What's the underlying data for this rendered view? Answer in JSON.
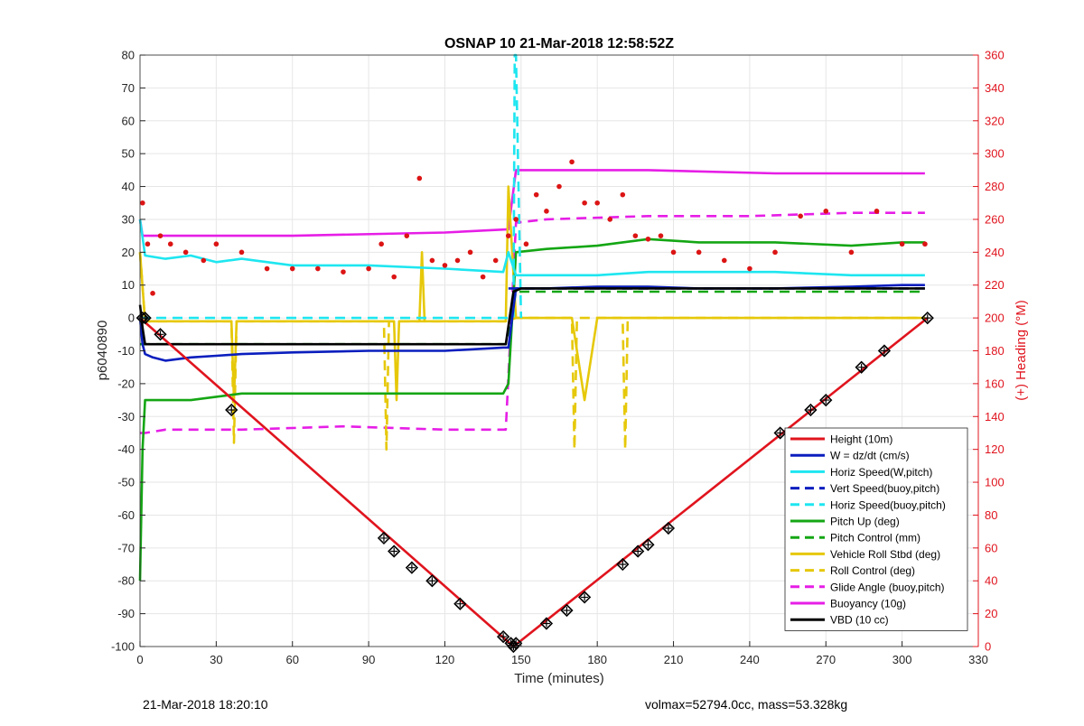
{
  "footer": {
    "timestamp": "21-Mar-2018 18:20:10",
    "volmax_mass": "volmax=52794.0cc, mass=53.328kg"
  },
  "chart_data": {
    "type": "line",
    "title": "OSNAP 10 21-Mar-2018 12:58:52Z",
    "xlabel": "Time (minutes)",
    "ylabel": "p6040890",
    "y2label": "(+) Heading (°M)",
    "xlim": [
      0,
      330
    ],
    "ylim": [
      -100,
      80
    ],
    "y2lim": [
      0,
      360
    ],
    "x_ticks": [
      0,
      30,
      60,
      90,
      120,
      150,
      180,
      210,
      240,
      270,
      300,
      330
    ],
    "y_ticks": [
      80,
      70,
      60,
      50,
      40,
      30,
      20,
      10,
      0,
      -10,
      -20,
      -30,
      -40,
      -50,
      -60,
      -70,
      -80,
      -90,
      -100
    ],
    "y2_ticks": [
      360,
      340,
      320,
      300,
      280,
      260,
      240,
      220,
      200,
      180,
      160,
      140,
      120,
      100,
      80,
      60,
      40,
      20,
      0
    ],
    "grid": true,
    "legend_position": "bottom-right",
    "colors": {
      "red": "#e0141e",
      "blue": "#0a1ebe",
      "cyan": "#1ee6f0",
      "green": "#14a614",
      "yellow": "#e6c80a",
      "magenta": "#e61ee6",
      "black": "#000000",
      "heading": "#dc1414"
    },
    "series": [
      {
        "name": "Height (10m)",
        "color": "red",
        "dash": false,
        "x": [
          0,
          147,
          310
        ],
        "y": [
          0,
          -100,
          0
        ]
      },
      {
        "name": "W = dz/dt (cm/s)",
        "color": "blue",
        "dash": false,
        "x": [
          0,
          1,
          2,
          5,
          10,
          20,
          30,
          40,
          60,
          90,
          120,
          143,
          145,
          148,
          160,
          180,
          200,
          220,
          250,
          280,
          300,
          309
        ],
        "y": [
          0,
          -8,
          -11,
          -12,
          -13,
          -12,
          -11.5,
          -11,
          -10.5,
          -10,
          -10,
          -9,
          -9,
          9,
          9,
          9.5,
          9.5,
          9,
          9,
          9.5,
          10,
          10
        ]
      },
      {
        "name": "Horiz Speed(W,pitch)",
        "color": "cyan",
        "dash": false,
        "x": [
          0,
          2,
          10,
          20,
          30,
          40,
          60,
          90,
          120,
          143,
          145,
          148,
          160,
          180,
          200,
          220,
          250,
          280,
          300,
          309
        ],
        "y": [
          30,
          19,
          18,
          19,
          17,
          18,
          16,
          16,
          15,
          14,
          20,
          13,
          13,
          13,
          14,
          14,
          14,
          13,
          13,
          13
        ]
      },
      {
        "name": "Vert Speed(buoy,pitch)",
        "color": "blue",
        "dash": true,
        "x": [
          145,
          309
        ],
        "y": [
          9,
          9
        ]
      },
      {
        "name": "Horiz Speed(buoy,pitch)",
        "color": "cyan",
        "dash": true,
        "x": [
          0,
          144,
          147,
          147.5,
          148,
          150
        ],
        "y": [
          0,
          0,
          0,
          80,
          80,
          0
        ]
      },
      {
        "name": "Pitch Up (deg)",
        "color": "green",
        "dash": false,
        "x": [
          0,
          1,
          2,
          5,
          20,
          40,
          60,
          90,
          120,
          143,
          145,
          148,
          160,
          180,
          200,
          220,
          250,
          280,
          300,
          309
        ],
        "y": [
          -80,
          -40,
          -25,
          -25,
          -25,
          -23,
          -23,
          -23,
          -23,
          -23,
          -20,
          20,
          21,
          22,
          24,
          23,
          23,
          22,
          23,
          23
        ]
      },
      {
        "name": "Pitch Control (mm)",
        "color": "green",
        "dash": true,
        "x": [
          0,
          144,
          148,
          309
        ],
        "y": [
          -8,
          -8,
          8,
          8
        ]
      },
      {
        "name": "Vehicle Roll Stbd (deg)",
        "color": "yellow",
        "dash": false,
        "x": [
          0,
          2,
          10,
          36,
          37,
          38,
          100,
          101,
          102,
          110,
          111,
          112,
          144,
          145,
          148,
          170,
          175,
          180,
          210,
          250,
          290,
          300,
          309
        ],
        "y": [
          20,
          -1,
          -1,
          -1,
          -25,
          -1,
          -1,
          -25,
          -1,
          -1,
          20,
          -1,
          -1,
          40,
          0,
          0,
          -25,
          0,
          0,
          0,
          0,
          0,
          0
        ]
      },
      {
        "name": "Roll Control (deg)",
        "color": "yellow",
        "dash": true,
        "x": [
          0,
          2,
          10,
          36,
          37,
          38,
          96,
          97,
          98,
          144,
          148,
          170,
          171,
          172,
          190,
          191,
          192,
          250,
          309
        ],
        "y": [
          20,
          -1,
          -1,
          -1,
          -38,
          -1,
          -1,
          -40,
          -1,
          -1,
          0,
          0,
          -40,
          0,
          0,
          -40,
          0,
          0,
          0
        ]
      },
      {
        "name": "Glide Angle (buoy,pitch)",
        "color": "magenta",
        "dash": true,
        "x": [
          0,
          2,
          10,
          40,
          80,
          120,
          144,
          148,
          160,
          200,
          240,
          280,
          309
        ],
        "y": [
          -35,
          -35,
          -34,
          -34,
          -33,
          -34,
          -34,
          29,
          30,
          31,
          31,
          32,
          32
        ]
      },
      {
        "name": "Buoyancy (10g)",
        "color": "magenta",
        "dash": false,
        "x": [
          0,
          1,
          60,
          120,
          145,
          148,
          200,
          250,
          309
        ],
        "y": [
          30,
          25,
          25,
          26,
          27,
          45,
          45,
          44,
          44
        ]
      },
      {
        "name": "VBD (10 cc)",
        "color": "black",
        "dash": false,
        "x": [
          0,
          1,
          2,
          5,
          144,
          147,
          150,
          309
        ],
        "y": [
          4,
          -3,
          -8,
          -8,
          -8,
          8,
          9,
          9
        ]
      }
    ],
    "heading_series": {
      "axis": "right",
      "color": "heading",
      "x": [
        1,
        3,
        5,
        8,
        12,
        18,
        25,
        30,
        40,
        50,
        60,
        70,
        80,
        90,
        95,
        100,
        105,
        110,
        115,
        120,
        125,
        130,
        135,
        140,
        145,
        148,
        152,
        156,
        160,
        165,
        170,
        175,
        180,
        185,
        190,
        195,
        200,
        205,
        210,
        220,
        230,
        240,
        250,
        260,
        270,
        280,
        290,
        300,
        309
      ],
      "y": [
        270,
        245,
        215,
        250,
        245,
        240,
        235,
        245,
        240,
        230,
        230,
        230,
        228,
        230,
        245,
        225,
        250,
        285,
        235,
        232,
        235,
        240,
        225,
        235,
        250,
        260,
        245,
        275,
        265,
        280,
        295,
        270,
        270,
        260,
        275,
        250,
        248,
        250,
        240,
        240,
        235,
        230,
        240,
        262,
        265,
        240,
        265,
        245,
        245
      ]
    },
    "height_markers": {
      "x": [
        1,
        2,
        8,
        36,
        96,
        100,
        107,
        115,
        126,
        143,
        146,
        147,
        148,
        160,
        168,
        175,
        190,
        196,
        200,
        208,
        252,
        264,
        270,
        284,
        293,
        310
      ],
      "y": [
        0,
        0,
        -5,
        -28,
        -67,
        -71,
        -76,
        -80,
        -87,
        -97,
        -99,
        -100,
        -99,
        -93,
        -89,
        -85,
        -75,
        -71,
        -69,
        -64,
        -35,
        -28,
        -25,
        -15,
        -10,
        0
      ]
    }
  }
}
